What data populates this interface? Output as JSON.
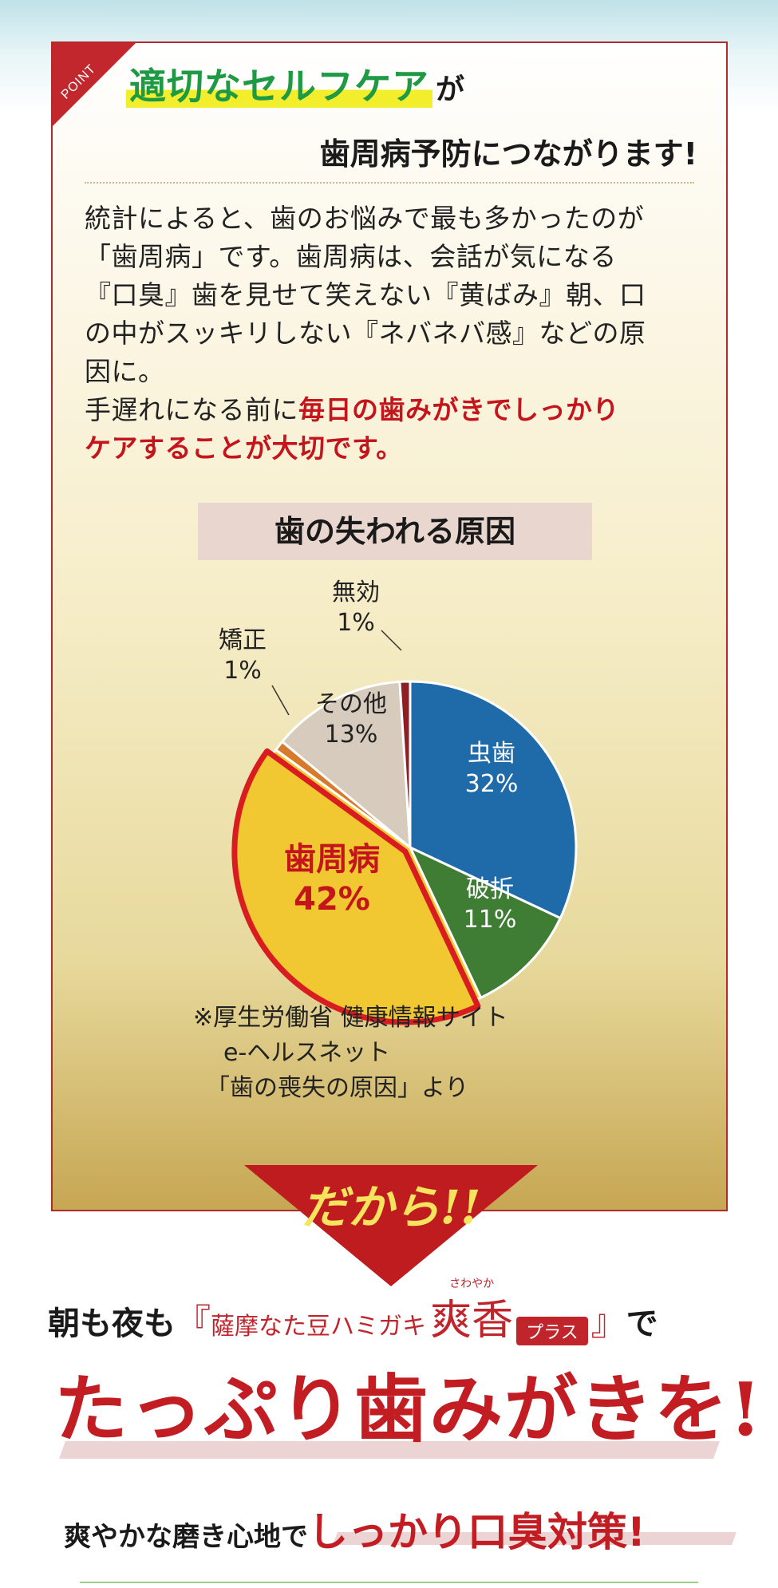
{
  "panel": {
    "corner_label": "POINT",
    "heading_highlight": "適切なセルフケア",
    "heading_suffix": "が",
    "heading_line2": "歯周病予防につながります!",
    "body_line1": "統計によると、歯のお悩みで最も多かったのが",
    "body_line2": "「歯周病」です。歯周病は、会話が気になる",
    "body_line3": "『口臭』歯を見せて笑えない『黄ばみ』朝、口",
    "body_line4": "の中がスッキリしない『ネバネバ感』などの原",
    "body_line5": "因に。",
    "body_line6_plain": "手遅れになる前に",
    "body_line6_em": "毎日の歯みがきでしっかり",
    "body_line7_em": "ケアすることが大切です。"
  },
  "chart_data": {
    "type": "pie",
    "title": "歯の失われる原因",
    "slices": [
      {
        "label": "虫歯",
        "value": 32,
        "display": "32%",
        "color": "#1f6aa8"
      },
      {
        "label": "破折",
        "value": 11,
        "display": "11%",
        "color": "#3f7d35"
      },
      {
        "label": "歯周病",
        "value": 42,
        "display": "42%",
        "color": "#f2c832"
      },
      {
        "label": "矯正",
        "value": 1,
        "display": "1%",
        "color": "#d87a2c"
      },
      {
        "label": "その他",
        "value": 13,
        "display": "13%",
        "color": "#d6cbbd"
      },
      {
        "label": "無効",
        "value": 1,
        "display": "1%",
        "color": "#8e1f22"
      }
    ],
    "highlight": "歯周病"
  },
  "source": {
    "line1": "※厚生労働省 健康情報サイト",
    "line2": "e-ヘルスネット",
    "line3": "「歯の喪失の原因」より"
  },
  "cta": {
    "dakara": "だから!!",
    "asa_yoru": "朝も夜も",
    "bracket_open": "『",
    "brand_name": "薩摩なた豆ハミガキ",
    "ruby": "さわやか",
    "soukou": "爽香",
    "plus": "プラス",
    "bracket_close": "』",
    "de": "で",
    "big": "たっぷり歯みがきを!",
    "sub_soft": "爽やかな磨き心地で",
    "sub_strong": "しっかり口臭対策!"
  }
}
